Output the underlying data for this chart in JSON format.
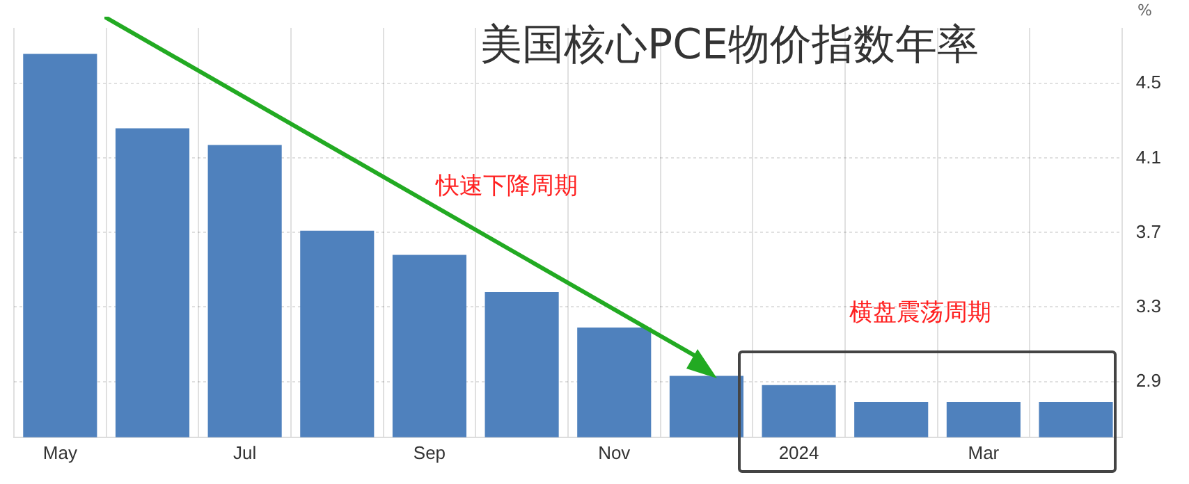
{
  "chart_data": {
    "type": "bar",
    "title": "美国核心PCE物价指数年率",
    "ylabel": "%",
    "categories": [
      "May",
      null,
      "Jul",
      null,
      "Sep",
      null,
      "Nov",
      null,
      "2024",
      null,
      "Mar",
      null
    ],
    "values": [
      4.66,
      4.26,
      4.17,
      3.71,
      3.58,
      3.38,
      3.19,
      2.93,
      2.88,
      2.79,
      2.79,
      2.79
    ],
    "color": "#4f81bd",
    "ylim": [
      2.6,
      4.8
    ],
    "yticks": [
      2.9,
      3.3,
      3.7,
      4.1,
      4.5
    ],
    "grid": true,
    "annotations": [
      "快速下降周期",
      "横盘震荡周期"
    ]
  }
}
